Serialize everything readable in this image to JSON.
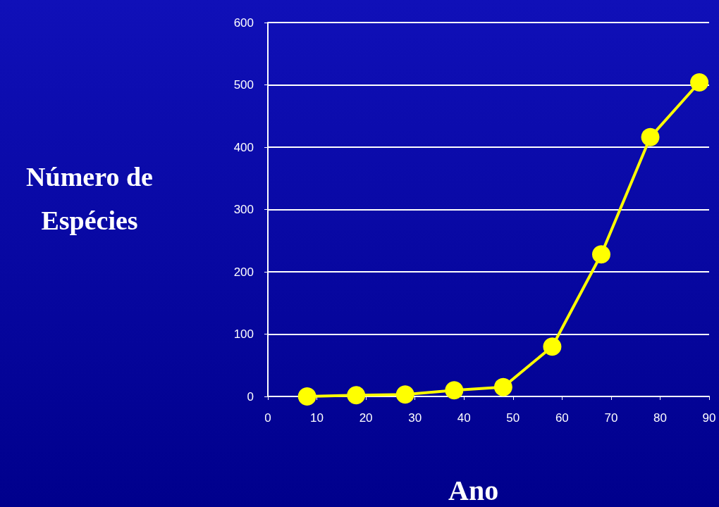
{
  "chart_data": {
    "type": "line",
    "xlabel": "Ano",
    "ylabel": "Número de\nEspécies",
    "x": [
      8,
      18,
      28,
      38,
      48,
      58,
      68,
      78,
      88
    ],
    "series": [
      {
        "color": "#ffff00",
        "values": [
          0,
          2,
          3,
          10,
          15,
          80,
          228,
          416,
          504
        ]
      }
    ],
    "xlim": [
      0,
      90
    ],
    "xticks": [
      0,
      10,
      20,
      30,
      40,
      50,
      60,
      70,
      80,
      90
    ],
    "ylim": [
      0,
      600
    ],
    "yticks": [
      0,
      100,
      200,
      300,
      400,
      500,
      600
    ],
    "grid": "y",
    "marker": "circle",
    "line_style": "solid"
  }
}
